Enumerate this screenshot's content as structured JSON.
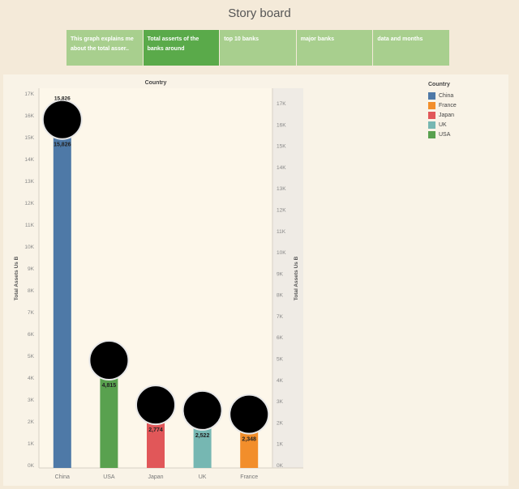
{
  "header": {
    "title": "Story board"
  },
  "tabs": [
    {
      "label": "This graph explains me about the total asser..",
      "active": false
    },
    {
      "label": "Total asserts of the banks around",
      "active": true
    },
    {
      "label": "top 10 banks",
      "active": false
    },
    {
      "label": "major banks",
      "active": false
    },
    {
      "label": "data and months",
      "active": false
    }
  ],
  "legend": {
    "title": "Country",
    "items": [
      {
        "label": "China",
        "color": "#4e79a7"
      },
      {
        "label": "France",
        "color": "#f28e2b"
      },
      {
        "label": "Japan",
        "color": "#e15759"
      },
      {
        "label": "UK",
        "color": "#76b7b2"
      },
      {
        "label": "USA",
        "color": "#59a14f"
      }
    ]
  },
  "chart_data": {
    "type": "bar",
    "title": "Country",
    "ylabel": "Total Assets Us B",
    "y2label": "Total Assets Us B",
    "ylim": [
      0,
      17000
    ],
    "yticks": [
      "0K",
      "1K",
      "2K",
      "3K",
      "4K",
      "5K",
      "6K",
      "7K",
      "8K",
      "9K",
      "10K",
      "11K",
      "12K",
      "13K",
      "14K",
      "15K",
      "16K",
      "17K"
    ],
    "categories": [
      "China",
      "USA",
      "Japan",
      "UK",
      "France"
    ],
    "values": [
      15826,
      4815,
      2774,
      2522,
      2348
    ],
    "labels": [
      "15,826",
      "4,815",
      "2,774",
      "2,522",
      "2,348"
    ],
    "colors": [
      "#4e79a7",
      "#59a14f",
      "#e15759",
      "#76b7b2",
      "#f28e2b"
    ],
    "top_label": "15,826"
  }
}
